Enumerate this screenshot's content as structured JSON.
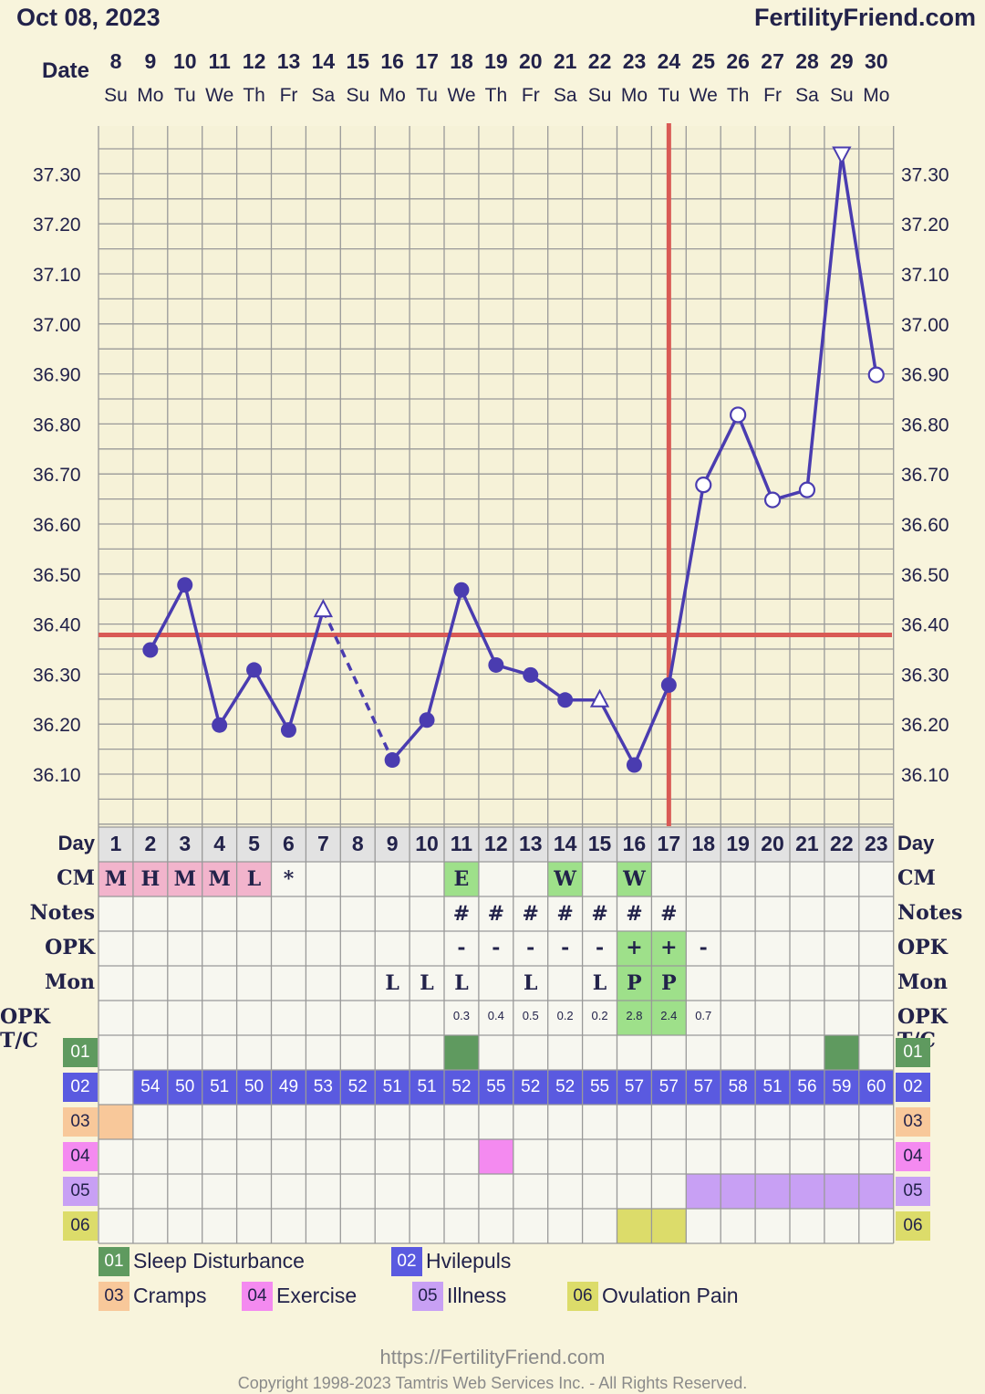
{
  "header": {
    "date": "Oct 08, 2023",
    "site": "FertilityFriend.com",
    "date_label": "Date"
  },
  "dates": [
    "8",
    "9",
    "10",
    "11",
    "12",
    "13",
    "14",
    "15",
    "16",
    "17",
    "18",
    "19",
    "20",
    "21",
    "22",
    "23",
    "24",
    "25",
    "26",
    "27",
    "28",
    "29",
    "30"
  ],
  "weekdays": [
    "Su",
    "Mo",
    "Tu",
    "We",
    "Th",
    "Fr",
    "Sa",
    "Su",
    "Mo",
    "Tu",
    "We",
    "Th",
    "Fr",
    "Sa",
    "Su",
    "Mo",
    "Tu",
    "We",
    "Th",
    "Fr",
    "Sa",
    "Su",
    "Mo"
  ],
  "chart_data": {
    "type": "line",
    "title": "",
    "xlabel": "Day",
    "ylabel": "",
    "ylim": [
      36.0,
      37.4
    ],
    "yticks": [
      "37.30",
      "37.20",
      "37.10",
      "37.00",
      "36.90",
      "36.80",
      "36.70",
      "36.60",
      "36.50",
      "36.40",
      "36.30",
      "36.20",
      "36.10"
    ],
    "grid": true,
    "coverline": 36.38,
    "ovulation_day": 17,
    "x": [
      2,
      3,
      4,
      5,
      6,
      7,
      9,
      10,
      11,
      12,
      13,
      14,
      15,
      16,
      17,
      18,
      19,
      20,
      21,
      22,
      23
    ],
    "series": [
      {
        "values": [
          36.35,
          36.48,
          36.2,
          36.31,
          36.19,
          36.43,
          36.13,
          36.21,
          36.47,
          36.32,
          36.3,
          36.25,
          36.25,
          36.12,
          36.28,
          36.68,
          36.82,
          36.65,
          36.67,
          37.34,
          36.9
        ],
        "markers": [
          "filled",
          "filled",
          "filled",
          "filled",
          "filled",
          "triangle-up",
          "filled",
          "filled",
          "filled",
          "filled",
          "filled",
          "filled",
          "triangle-up",
          "filled",
          "filled",
          "open",
          "open",
          "open",
          "open",
          "triangle-down",
          "open"
        ],
        "dashed_after": [
          7
        ]
      }
    ]
  },
  "rows": {
    "day_label": "Day",
    "days": [
      "1",
      "2",
      "3",
      "4",
      "5",
      "6",
      "7",
      "8",
      "9",
      "10",
      "11",
      "12",
      "13",
      "14",
      "15",
      "16",
      "17",
      "18",
      "19",
      "20",
      "21",
      "22",
      "23"
    ],
    "labels": {
      "cm": "CM",
      "notes": "Notes",
      "opk": "OPK",
      "mon": "Mon",
      "opktc": "OPK T/C"
    },
    "cm": [
      "M",
      "H",
      "M",
      "M",
      "L",
      "*",
      "",
      "",
      "",
      "",
      "E",
      "",
      "",
      "W",
      "",
      "W",
      "",
      "",
      "",
      "",
      "",
      "",
      ""
    ],
    "notes": [
      "",
      "",
      "",
      "",
      "",
      "",
      "",
      "",
      "",
      "",
      "#",
      "#",
      "#",
      "#",
      "#",
      "#",
      "#",
      "",
      "",
      "",
      "",
      "",
      ""
    ],
    "opk": [
      "",
      "",
      "",
      "",
      "",
      "",
      "",
      "",
      "",
      "",
      "-",
      "-",
      "-",
      "-",
      "-",
      "+",
      "+",
      "-",
      "",
      "",
      "",
      "",
      ""
    ],
    "mon": [
      "",
      "",
      "",
      "",
      "",
      "",
      "",
      "",
      "L",
      "L",
      "L",
      "",
      "L",
      "",
      "L",
      "P",
      "P",
      "",
      "",
      "",
      "",
      "",
      ""
    ],
    "opktc": [
      "",
      "",
      "",
      "",
      "",
      "",
      "",
      "",
      "",
      "",
      "0.3",
      "0.4",
      "0.5",
      "0.2",
      "0.2",
      "2.8",
      "2.4",
      "0.7",
      "",
      "",
      "",
      "",
      ""
    ],
    "hvilepuls": [
      "",
      "54",
      "50",
      "51",
      "50",
      "49",
      "53",
      "52",
      "51",
      "51",
      "52",
      "55",
      "52",
      "52",
      "55",
      "57",
      "57",
      "57",
      "58",
      "51",
      "56",
      "59",
      "60"
    ]
  },
  "codes": [
    {
      "id": "01",
      "name": "Sleep Disturbance",
      "color": "#5f9a5f",
      "days": [
        11,
        22
      ]
    },
    {
      "id": "02",
      "name": "Hvilepuls",
      "color": "#5a5ae0",
      "days": []
    },
    {
      "id": "03",
      "name": "Cramps",
      "color": "#f8c89a",
      "days": [
        1
      ]
    },
    {
      "id": "04",
      "name": "Exercise",
      "color": "#f48af0",
      "days": [
        12
      ]
    },
    {
      "id": "05",
      "name": "Illness",
      "color": "#c8a0f4",
      "days": [
        18,
        19,
        20,
        21,
        22,
        23
      ]
    },
    {
      "id": "06",
      "name": "Ovulation Pain",
      "color": "#dcdc6a",
      "days": [
        16,
        17
      ]
    }
  ],
  "colors": {
    "line": "#4a3cb0",
    "coverline": "#d95a55",
    "cm_bg": "#f2b4cc",
    "green_bg": "#9ee08a",
    "grid": "#999999",
    "plot_bg": "#f6f2d8",
    "cell_bg": "#f7f7f0"
  },
  "footer": {
    "url": "https://FertilityFriend.com",
    "copyright": "Copyright 1998-2023 Tamtris Web Services Inc. - All Rights Reserved."
  }
}
